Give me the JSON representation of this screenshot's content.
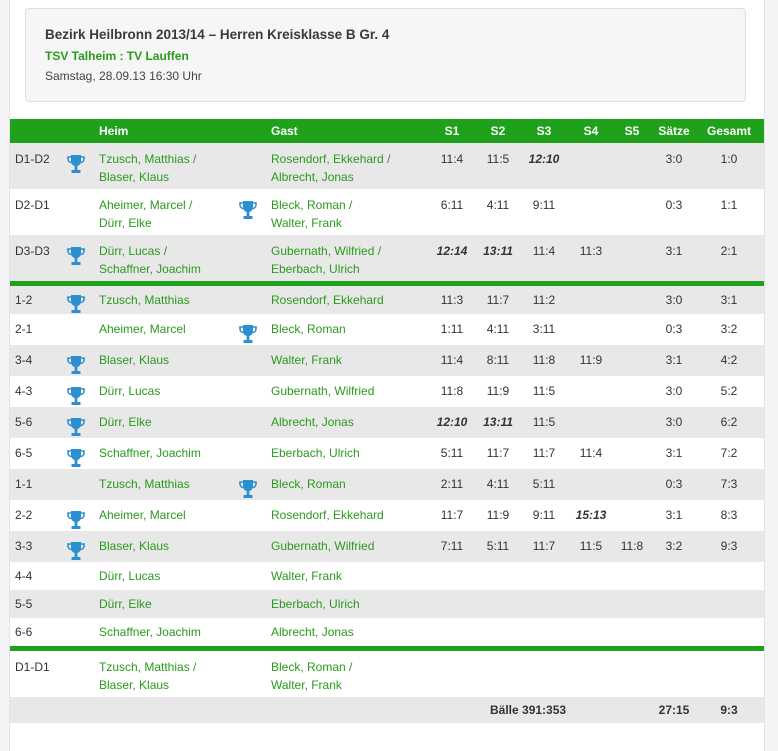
{
  "header": {
    "title": "Bezirk Heilbronn 2013/14 – Herren Kreisklasse B Gr. 4",
    "teams": "TSV Talheim : TV Lauffen",
    "datetime": "Samstag, 28.09.13 16:30 Uhr"
  },
  "columns": {
    "home": "Heim",
    "guest": "Gast",
    "s1": "S1",
    "s2": "S2",
    "s3": "S3",
    "s4": "S4",
    "s5": "S5",
    "saetze": "Sätze",
    "gesamt": "Gesamt"
  },
  "rows": [
    {
      "disc": "D1-D2",
      "home1": "Tzusch, Matthias /",
      "home2": "Blaser, Klaus",
      "guest1": "Rosendorf, Ekkehard /",
      "guest2": "Albrecht, Jonas",
      "s1": "11:4",
      "s2": "11:5",
      "s3": "12:10",
      "s4": "",
      "s5": "",
      "saetze": "3:0",
      "gesamt": "1:0"
    },
    {
      "disc": "D2-D1",
      "home1": "Aheimer, Marcel /",
      "home2": "Dürr, Elke",
      "guest1": "Bleck, Roman /",
      "guest2": "Walter, Frank",
      "s1": "6:11",
      "s2": "4:11",
      "s3": "9:11",
      "s4": "",
      "s5": "",
      "saetze": "0:3",
      "gesamt": "1:1"
    },
    {
      "disc": "D3-D3",
      "home1": "Dürr, Lucas /",
      "home2": "Schaffner, Joachim",
      "guest1": "Gubernath, Wilfried /",
      "guest2": "Eberbach, Ulrich",
      "s1": "12:14",
      "s2": "13:11",
      "s3": "11:4",
      "s4": "11:3",
      "s5": "",
      "saetze": "3:1",
      "gesamt": "2:1"
    },
    {
      "disc": "1-2",
      "home": "Tzusch, Matthias",
      "guest": "Rosendorf, Ekkehard",
      "s1": "11:3",
      "s2": "11:7",
      "s3": "11:2",
      "s4": "",
      "s5": "",
      "saetze": "3:0",
      "gesamt": "3:1"
    },
    {
      "disc": "2-1",
      "home": "Aheimer, Marcel",
      "guest": "Bleck, Roman",
      "s1": "1:11",
      "s2": "4:11",
      "s3": "3:11",
      "s4": "",
      "s5": "",
      "saetze": "0:3",
      "gesamt": "3:2"
    },
    {
      "disc": "3-4",
      "home": "Blaser, Klaus",
      "guest": "Walter, Frank",
      "s1": "11:4",
      "s2": "8:11",
      "s3": "11:8",
      "s4": "11:9",
      "s5": "",
      "saetze": "3:1",
      "gesamt": "4:2"
    },
    {
      "disc": "4-3",
      "home": "Dürr, Lucas",
      "guest": "Gubernath, Wilfried",
      "s1": "11:8",
      "s2": "11:9",
      "s3": "11:5",
      "s4": "",
      "s5": "",
      "saetze": "3:0",
      "gesamt": "5:2"
    },
    {
      "disc": "5-6",
      "home": "Dürr, Elke",
      "guest": "Albrecht, Jonas",
      "s1": "12:10",
      "s2": "13:11",
      "s3": "11:5",
      "s4": "",
      "s5": "",
      "saetze": "3:0",
      "gesamt": "6:2"
    },
    {
      "disc": "6-5",
      "home": "Schaffner, Joachim",
      "guest": "Eberbach, Ulrich",
      "s1": "5:11",
      "s2": "11:7",
      "s3": "11:7",
      "s4": "11:4",
      "s5": "",
      "saetze": "3:1",
      "gesamt": "7:2"
    },
    {
      "disc": "1-1",
      "home": "Tzusch, Matthias",
      "guest": "Bleck, Roman",
      "s1": "2:11",
      "s2": "4:11",
      "s3": "5:11",
      "s4": "",
      "s5": "",
      "saetze": "0:3",
      "gesamt": "7:3"
    },
    {
      "disc": "2-2",
      "home": "Aheimer, Marcel",
      "guest": "Rosendorf, Ekkehard",
      "s1": "11:7",
      "s2": "11:9",
      "s3": "9:11",
      "s4": "15:13",
      "s5": "",
      "saetze": "3:1",
      "gesamt": "8:3"
    },
    {
      "disc": "3-3",
      "home": "Blaser, Klaus",
      "guest": "Gubernath, Wilfried",
      "s1": "7:11",
      "s2": "5:11",
      "s3": "11:7",
      "s4": "11:5",
      "s5": "11:8",
      "saetze": "3:2",
      "gesamt": "9:3"
    },
    {
      "disc": "4-4",
      "home": "Dürr, Lucas",
      "guest": "Walter, Frank"
    },
    {
      "disc": "5-5",
      "home": "Dürr, Elke",
      "guest": "Eberbach, Ulrich"
    },
    {
      "disc": "6-6",
      "home": "Schaffner, Joachim",
      "guest": "Albrecht, Jonas"
    },
    {
      "disc": "D1-D1",
      "home1": "Tzusch, Matthias /",
      "home2": "Blaser, Klaus",
      "guest1": "Bleck, Roman /",
      "guest2": "Walter, Frank"
    }
  ],
  "summary": {
    "baelle": "Bälle 391:353",
    "saetze": "27:15",
    "gesamt": "9:3"
  },
  "colors": {
    "accent_green": "#1fa11b",
    "link_green": "#2a9a1c",
    "trophy_blue": "#2b8fd1",
    "row_alt": "#e8e8e8"
  },
  "icons": {
    "winner": "trophy-icon"
  }
}
